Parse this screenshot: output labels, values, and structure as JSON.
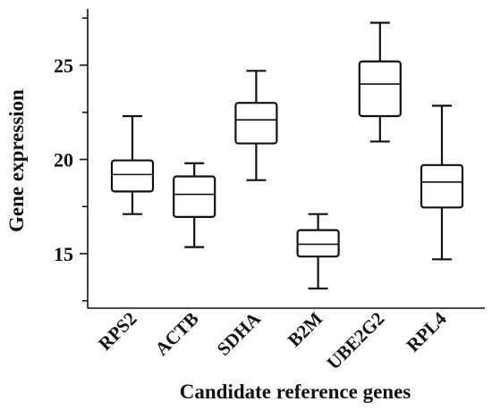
{
  "chart_data": {
    "type": "box",
    "title": "",
    "xlabel": "Candidate reference genes",
    "ylabel": "Gene expression",
    "ylim": [
      12.5,
      28
    ],
    "yticks": [
      15,
      20,
      25
    ],
    "grid": false,
    "colors": {
      "stroke": "#111111",
      "fill": "#ffffff"
    },
    "categories": [
      "RPS2",
      "ACTB",
      "SDHA",
      "B2M",
      "UBE2G2",
      "RPL4"
    ],
    "boxes": [
      {
        "name": "RPS2",
        "min": 17.1,
        "q1": 18.3,
        "median": 19.2,
        "q3": 19.95,
        "max": 22.3
      },
      {
        "name": "ACTB",
        "min": 15.35,
        "q1": 16.95,
        "median": 18.15,
        "q3": 19.1,
        "max": 19.8
      },
      {
        "name": "SDHA",
        "min": 18.9,
        "q1": 20.85,
        "median": 22.1,
        "q3": 23.0,
        "max": 24.7
      },
      {
        "name": "B2M",
        "min": 13.15,
        "q1": 14.85,
        "median": 15.5,
        "q3": 16.25,
        "max": 17.1
      },
      {
        "name": "UBE2G2",
        "min": 20.95,
        "q1": 22.3,
        "median": 24.0,
        "q3": 25.2,
        "max": 27.25
      },
      {
        "name": "RPL4",
        "min": 14.7,
        "q1": 17.45,
        "median": 18.8,
        "q3": 19.7,
        "max": 22.85
      }
    ]
  }
}
